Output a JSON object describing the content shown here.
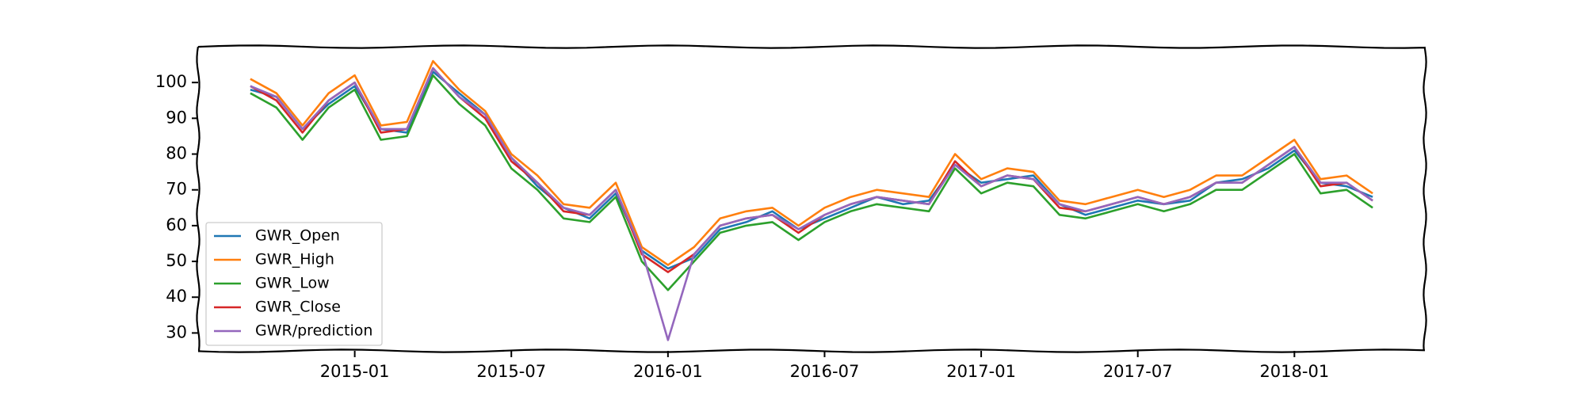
{
  "chart_data": {
    "type": "line",
    "x": [
      "2014-09",
      "2014-10",
      "2014-11",
      "2014-12",
      "2015-01",
      "2015-02",
      "2015-03",
      "2015-04",
      "2015-05",
      "2015-06",
      "2015-07",
      "2015-08",
      "2015-09",
      "2015-10",
      "2015-11",
      "2015-12",
      "2016-01",
      "2016-02",
      "2016-03",
      "2016-04",
      "2016-05",
      "2016-06",
      "2016-07",
      "2016-08",
      "2016-09",
      "2016-10",
      "2016-11",
      "2016-12",
      "2017-01",
      "2017-02",
      "2017-03",
      "2017-04",
      "2017-05",
      "2017-06",
      "2017-07",
      "2017-08",
      "2017-09",
      "2017-10",
      "2017-11",
      "2017-12",
      "2018-01",
      "2018-02",
      "2018-03",
      "2018-04"
    ],
    "series": [
      {
        "name": "GWR_Open",
        "color": "#1f77b4",
        "values": [
          98,
          96,
          87,
          94,
          99,
          87,
          86,
          103,
          97,
          91,
          79,
          71,
          65,
          62,
          69,
          53,
          48,
          51,
          59,
          61,
          64,
          59,
          62,
          65,
          68,
          66,
          67,
          77,
          72,
          73,
          74,
          66,
          63,
          65,
          67,
          66,
          67,
          72,
          73,
          76,
          81,
          72,
          71,
          68
        ]
      },
      {
        "name": "GWR_High",
        "color": "#ff7f0e",
        "values": [
          101,
          97,
          88,
          97,
          102,
          88,
          89,
          106,
          98,
          92,
          80,
          74,
          66,
          65,
          72,
          54,
          49,
          54,
          62,
          64,
          65,
          60,
          65,
          68,
          70,
          69,
          68,
          80,
          73,
          76,
          75,
          67,
          66,
          68,
          70,
          68,
          70,
          74,
          74,
          79,
          84,
          73,
          74,
          69
        ]
      },
      {
        "name": "GWR_Low",
        "color": "#2ca02c",
        "values": [
          97,
          93,
          84,
          93,
          98,
          84,
          85,
          102,
          94,
          88,
          76,
          70,
          62,
          61,
          68,
          50,
          42,
          50,
          58,
          60,
          61,
          56,
          61,
          64,
          66,
          65,
          64,
          76,
          69,
          72,
          71,
          63,
          62,
          64,
          66,
          64,
          66,
          70,
          70,
          75,
          80,
          69,
          70,
          65
        ]
      },
      {
        "name": "GWR_Close",
        "color": "#d62728",
        "values": [
          99,
          95,
          86,
          95,
          100,
          86,
          87,
          104,
          96,
          90,
          78,
          72,
          64,
          63,
          70,
          52,
          47,
          52,
          60,
          62,
          63,
          58,
          63,
          66,
          68,
          67,
          66,
          78,
          71,
          74,
          73,
          65,
          64,
          66,
          68,
          66,
          68,
          72,
          72,
          77,
          82,
          71,
          72,
          67
        ]
      },
      {
        "name": "GWR/prediction",
        "color": "#9467bd",
        "values": [
          99,
          96,
          87,
          95,
          100,
          87,
          87,
          104,
          96,
          91,
          79,
          72,
          65,
          63,
          70,
          53,
          28,
          52,
          60,
          62,
          63,
          59,
          63,
          66,
          68,
          67,
          66,
          77,
          71,
          74,
          73,
          66,
          64,
          66,
          68,
          66,
          68,
          72,
          72,
          77,
          82,
          72,
          72,
          67
        ]
      }
    ],
    "xlim": [
      "2014-07",
      "2018-06"
    ],
    "xticks": [
      "2015-01",
      "2015-07",
      "2016-01",
      "2016-07",
      "2017-01",
      "2017-07",
      "2018-01"
    ],
    "ylim": [
      25,
      110
    ],
    "yticks": [
      30,
      40,
      50,
      60,
      70,
      80,
      90,
      100
    ],
    "legend": "lower left"
  }
}
